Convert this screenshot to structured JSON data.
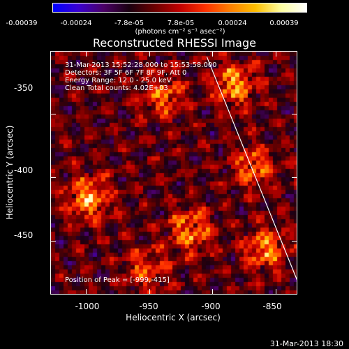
{
  "colorbar": {
    "ticks": [
      "-0.00039",
      "-0.00024",
      "-7.8e-05",
      "7.8e-05",
      "0.00024",
      "0.00039"
    ],
    "unit": "(photons cm⁻² s⁻¹ asec⁻²)",
    "colors": [
      "#0000ff",
      "#3a00d0",
      "#4b0066",
      "#1a0010",
      "#6a0000",
      "#c00000",
      "#ff3000",
      "#ff8000",
      "#ffc000",
      "#ffffa0",
      "#ffffff"
    ]
  },
  "chart_data": {
    "type": "heatmap",
    "title": "Reconstructed RHESSI Image",
    "xlabel": "Heliocentric X (arcsec)",
    "ylabel": "Heliocentric Y (arcsec)",
    "xticks": [
      "-1000",
      "-950",
      "-900",
      "-850"
    ],
    "yticks": [
      "-350",
      "-400",
      "-450"
    ],
    "x_tick_values": [
      -1000,
      -950,
      -900,
      -850
    ],
    "y_tick_values": [
      -350,
      -400,
      -450
    ],
    "xlim": [
      -1028,
      -833
    ],
    "ylim": [
      -492,
      -301
    ],
    "peak": [
      -999,
      -415
    ],
    "info_lines": [
      "31-Mar-2013 15:52:28.000 to 15:53:58.000",
      "Detectors: 3F 5F 6F 7F 8F 9F, Att 0",
      "Energy Range: 12.0 - 25.0 keV",
      "Clean    Total counts: 4.02E+03"
    ],
    "peak_label": "Position of Peak = [-999,-415]",
    "bright_regions": [
      {
        "x": -1000,
        "y": -415,
        "level": 0.95
      },
      {
        "x": -885,
        "y": -325,
        "level": 0.9
      },
      {
        "x": -920,
        "y": -440,
        "level": 0.85
      },
      {
        "x": -860,
        "y": -455,
        "level": 0.85
      },
      {
        "x": -940,
        "y": -335,
        "level": 0.7
      },
      {
        "x": -870,
        "y": -390,
        "level": 0.75
      },
      {
        "x": -955,
        "y": -470,
        "level": 0.6
      }
    ],
    "limb_line": {
      "x1": -905,
      "y1": -305,
      "x2": -833,
      "y2": -482
    }
  },
  "footer": {
    "timestamp": "31-Mar-2013 18:30"
  }
}
